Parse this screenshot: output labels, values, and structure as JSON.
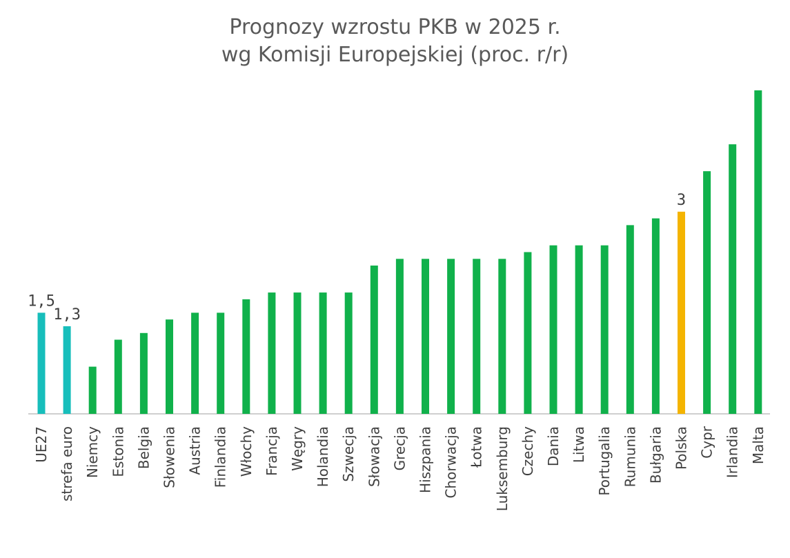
{
  "chart_data": {
    "type": "bar",
    "title_lines": [
      "Prognozy wzrostu PKB w 2025 r.",
      "wg Komisji Europejskiej (proc. r/r)"
    ],
    "categories": [
      "UE27",
      "strefa euro",
      "Niemcy",
      "Estonia",
      "Belgia",
      "Słowenia",
      "Austria",
      "Finlandia",
      "Włochy",
      "Francja",
      "Węgry",
      "Holandia",
      "Szwecja",
      "Słowacja",
      "Grecja",
      "Hiszpania",
      "Chorwacja",
      "Łotwa",
      "Luksemburg",
      "Czechy",
      "Dania",
      "Litwa",
      "Portugalia",
      "Rumunia",
      "Bułgaria",
      "Polska",
      "Cypr",
      "Irlandia",
      "Malta"
    ],
    "values": [
      1.5,
      1.3,
      0.7,
      1.1,
      1.2,
      1.4,
      1.5,
      1.5,
      1.7,
      1.8,
      1.8,
      1.8,
      1.8,
      2.2,
      2.3,
      2.3,
      2.3,
      2.3,
      2.3,
      2.4,
      2.5,
      2.5,
      2.5,
      2.8,
      2.9,
      3.0,
      3.6,
      4.0,
      4.8
    ],
    "data_labels": [
      "1,5",
      "1,3",
      "",
      "",
      "",
      "",
      "",
      "",
      "",
      "",
      "",
      "",
      "",
      "",
      "",
      "",
      "",
      "",
      "",
      "",
      "",
      "",
      "",
      "",
      "",
      "3",
      "",
      "",
      ""
    ],
    "groups": [
      "aggregate",
      "aggregate",
      "country",
      "country",
      "country",
      "country",
      "country",
      "country",
      "country",
      "country",
      "country",
      "country",
      "country",
      "country",
      "country",
      "country",
      "country",
      "country",
      "country",
      "country",
      "country",
      "country",
      "country",
      "country",
      "country",
      "highlight",
      "country",
      "country",
      "country"
    ],
    "colors": {
      "aggregate": "#17bebb",
      "country": "#10b14b",
      "highlight": "#f4b400"
    },
    "ylim": [
      0,
      4.8
    ],
    "grid": false,
    "legend": "none",
    "xlabel": "",
    "ylabel": ""
  }
}
